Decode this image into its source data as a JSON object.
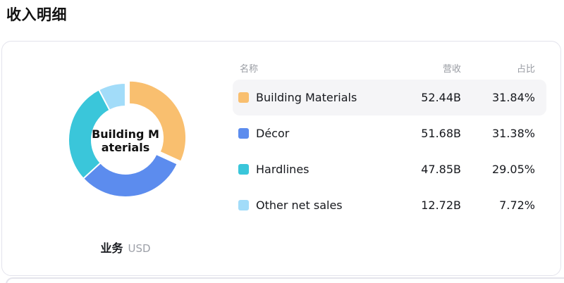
{
  "page": {
    "title": "收入明细"
  },
  "panel": {
    "dimension_label": "业务",
    "unit_label": "USD",
    "donut_center_line1": "Building M",
    "donut_center_line2": "aterials"
  },
  "table": {
    "headers": {
      "name": "名称",
      "revenue": "营收",
      "share": "占比"
    },
    "selected_row_bg": "#F5F5F7"
  },
  "chart_data": {
    "type": "pie",
    "title": "收入明细",
    "center_label": "Building Materials",
    "unit": "USD",
    "dimension": "业务",
    "legend_position": "right-table",
    "donut": true,
    "segments": [
      {
        "name": "Building Materials",
        "revenue_usd_b": 52.44,
        "revenue_display": "52.44B",
        "percent": 31.84,
        "percent_display": "31.84%",
        "color": "#F9BF6F",
        "selected": true
      },
      {
        "name": "Décor",
        "revenue_usd_b": 51.68,
        "revenue_display": "51.68B",
        "percent": 31.38,
        "percent_display": "31.38%",
        "color": "#5C8CEE",
        "selected": false
      },
      {
        "name": "Hardlines",
        "revenue_usd_b": 47.85,
        "revenue_display": "47.85B",
        "percent": 29.05,
        "percent_display": "29.05%",
        "color": "#3AC6DA",
        "selected": false
      },
      {
        "name": "Other net sales",
        "revenue_usd_b": 12.72,
        "revenue_display": "12.72B",
        "percent": 7.72,
        "percent_display": "7.72%",
        "color": "#A2DCF9",
        "selected": false
      }
    ]
  }
}
